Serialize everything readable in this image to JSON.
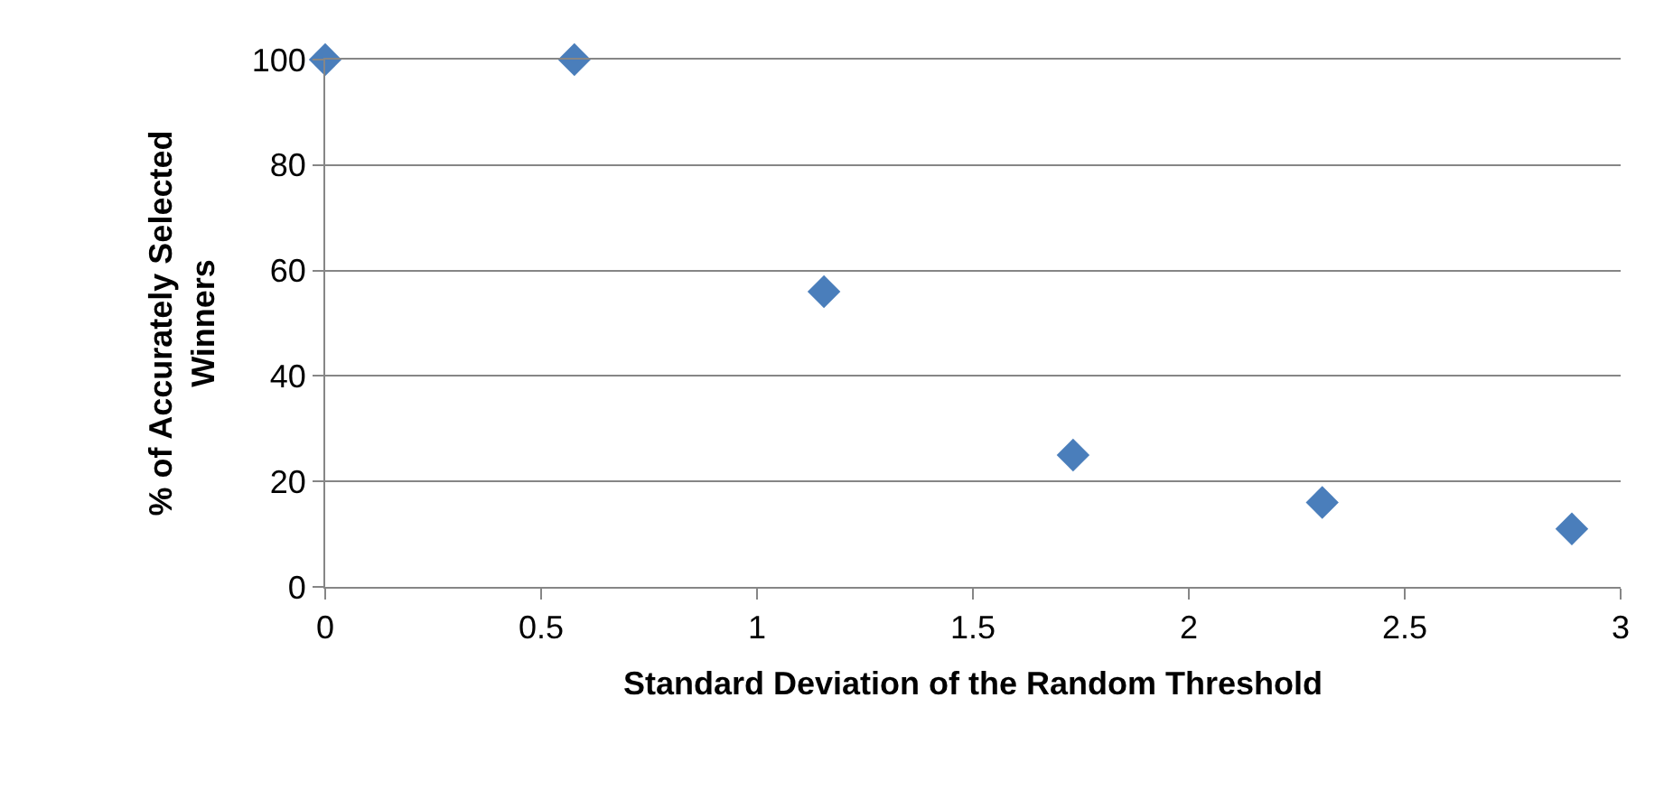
{
  "chart_data": {
    "type": "scatter",
    "xlabel": "Standard Deviation of the Random Threshold",
    "ylabel": "% of Accurately Selected\nWinners",
    "x": [
      0,
      0.577,
      1.155,
      1.732,
      2.309,
      2.887
    ],
    "series": [
      {
        "color": "#4a7ebb",
        "values": [
          100,
          100,
          56,
          25,
          16,
          11
        ]
      }
    ],
    "xlim": [
      0,
      3
    ],
    "xticks": [
      0,
      0.5,
      1,
      1.5,
      2,
      2.5,
      3
    ],
    "ylim": [
      0,
      100
    ],
    "yticks": [
      0,
      20,
      40,
      60,
      80,
      100
    ],
    "grid": "y",
    "marker": "diamond"
  }
}
